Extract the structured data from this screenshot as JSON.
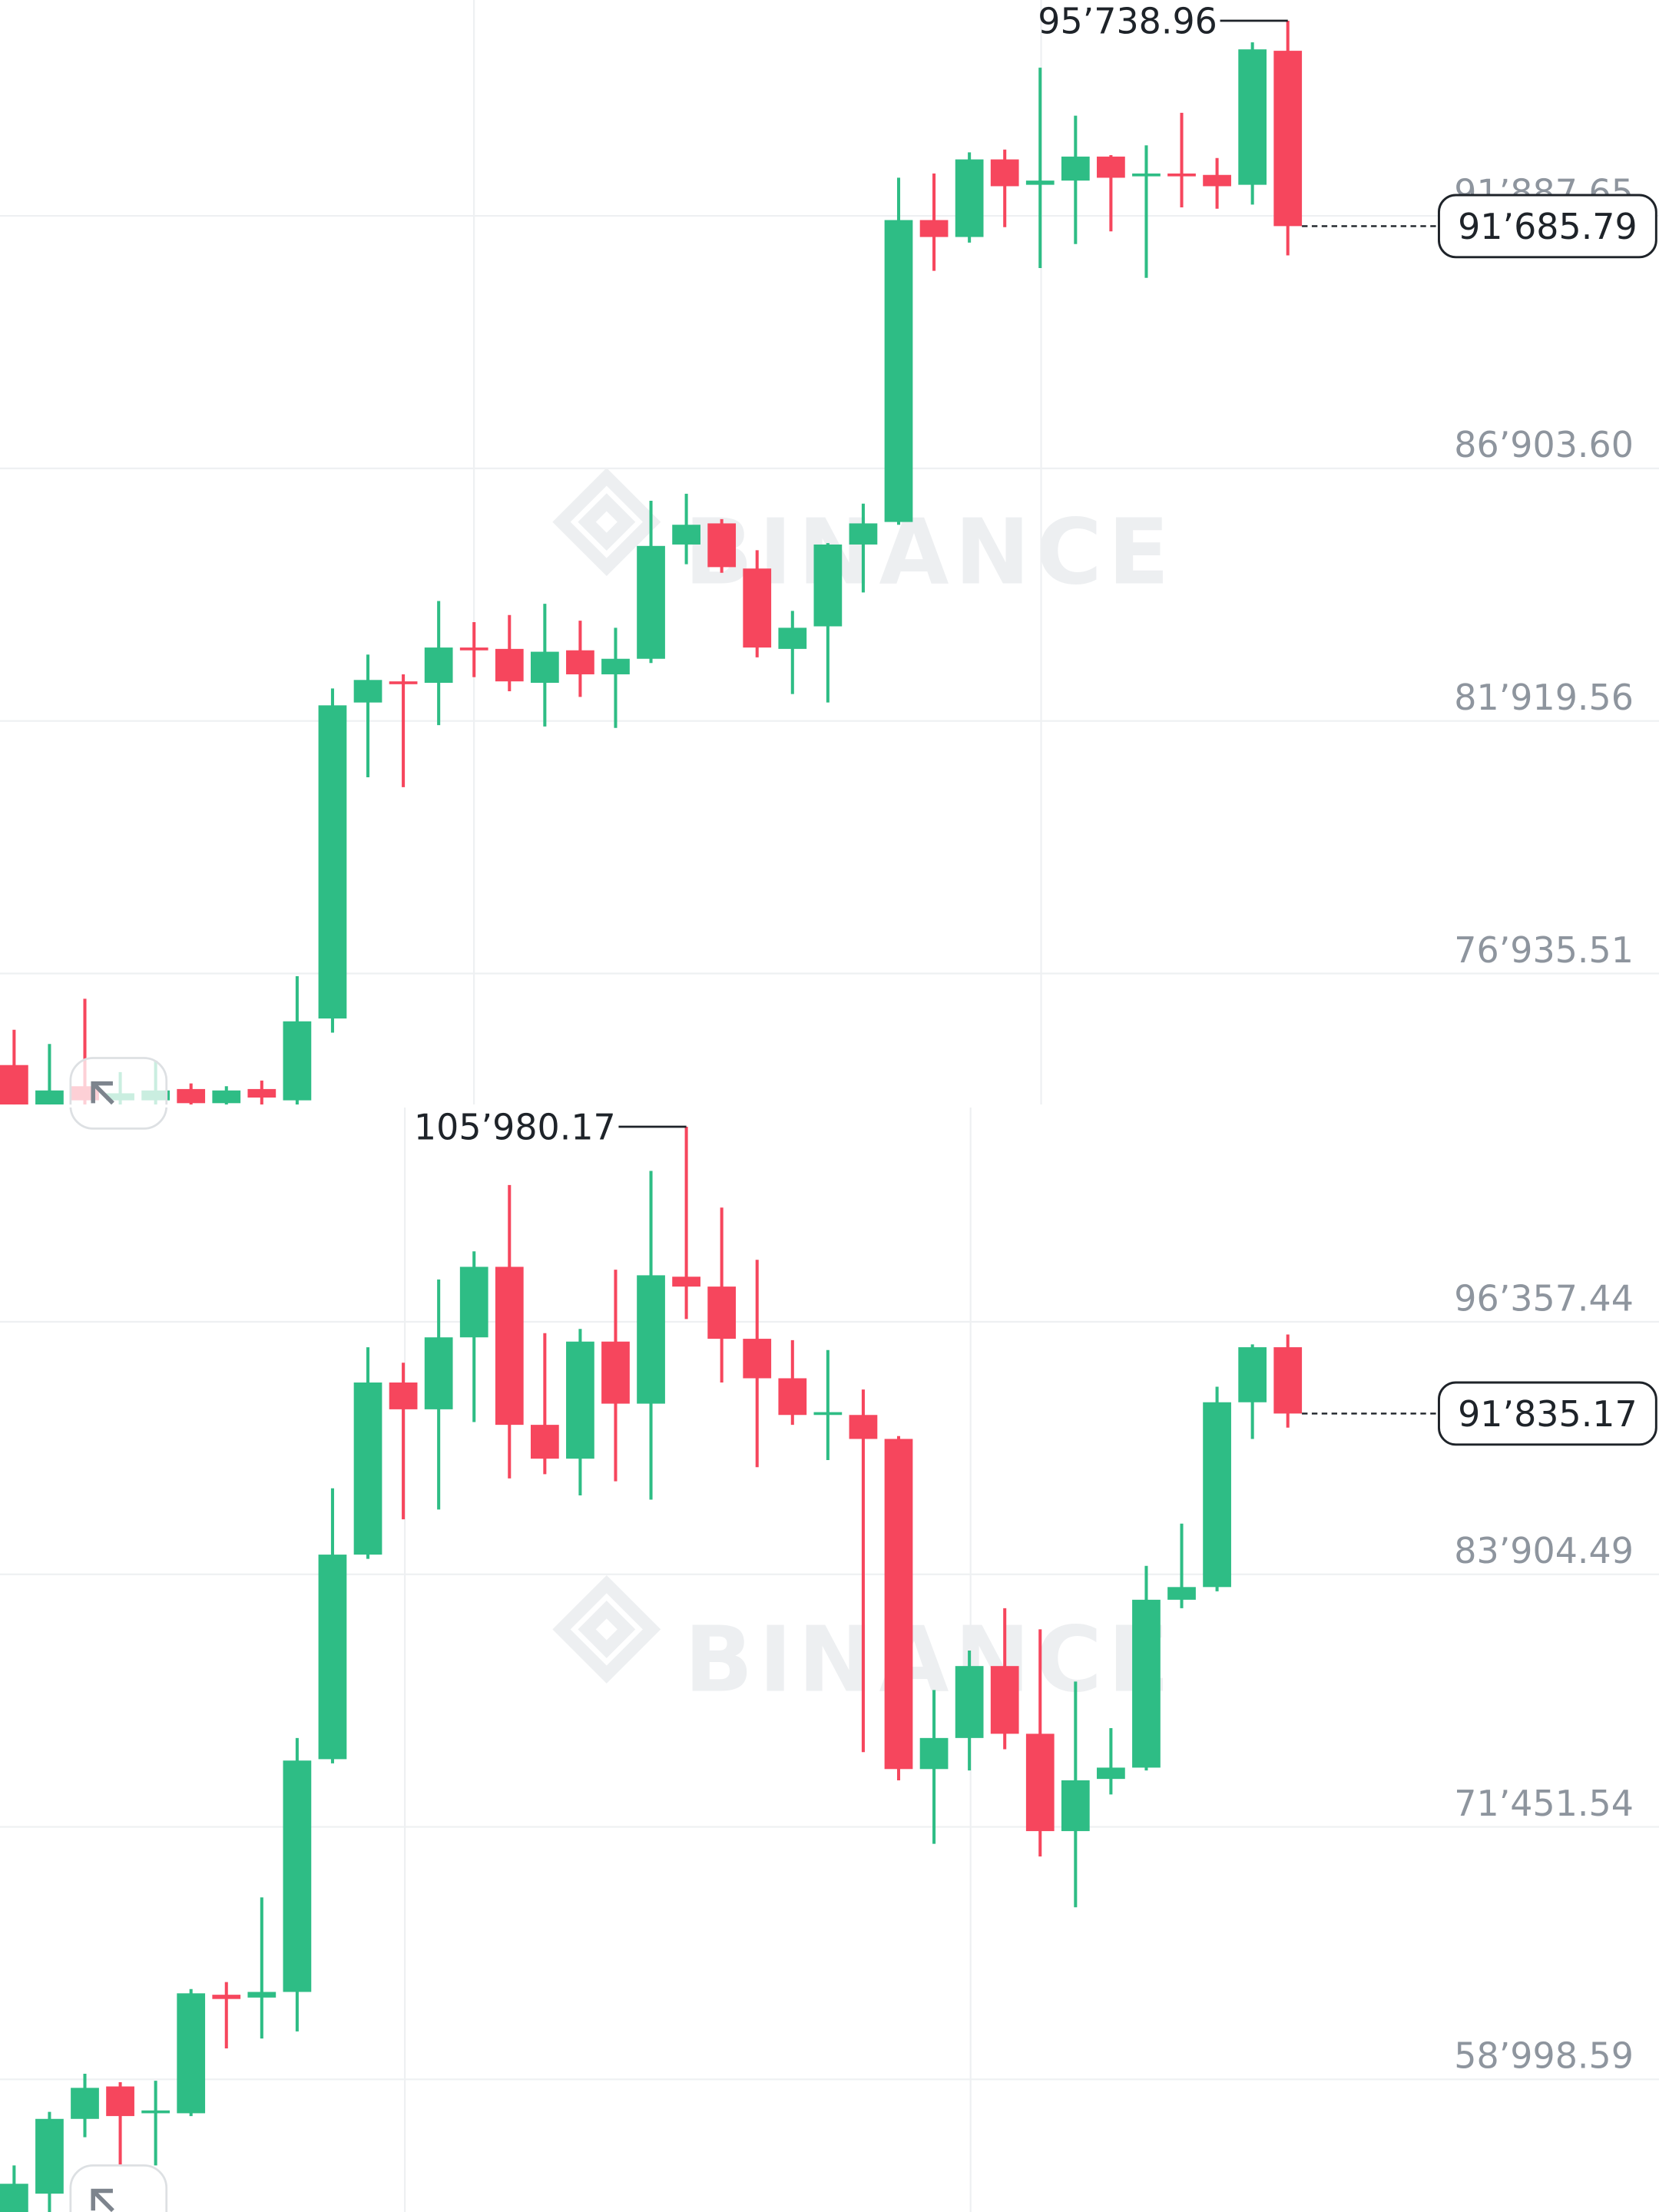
{
  "chart_data": [
    {
      "type": "candlestick",
      "watermark": "BINANCE",
      "up_color": "#2ebd85",
      "down_color": "#f6465d",
      "grid": true,
      "ylim": [
        74349,
        96148
      ],
      "yticks": [
        {
          "value": 91887.65,
          "label": "91’887.65"
        },
        {
          "value": 86903.6,
          "label": "86’903.60"
        },
        {
          "value": 81919.56,
          "label": "81’919.56"
        },
        {
          "value": 76935.51,
          "label": "76’935.51"
        }
      ],
      "open": [
        75129,
        74349,
        74711,
        74433,
        74433,
        74656,
        74377,
        74656,
        74433,
        76048,
        82284,
        82701,
        82673,
        83369,
        83342,
        82673,
        83314,
        82840,
        83147,
        85402,
        85819,
        84928,
        83342,
        83787,
        85402,
        85847,
        91805,
        91471,
        93002,
        92501,
        92584,
        93058,
        92668,
        92724,
        92696,
        92501,
        95146
      ],
      "high": [
        75825,
        75546,
        76437,
        74990,
        75212,
        74767,
        74711,
        74823,
        76883,
        82562,
        83230,
        82840,
        84288,
        83871,
        84010,
        84232,
        83898,
        83759,
        86265,
        86404,
        85903,
        85290,
        84093,
        85430,
        86209,
        92640,
        92724,
        93141,
        93197,
        94812,
        93865,
        93086,
        93280,
        93921,
        93030,
        95313,
        95738.96
      ],
      "low": [
        74154,
        74154,
        74154,
        74154,
        74154,
        74154,
        74154,
        74294,
        74294,
        75769,
        80808,
        80613,
        81838,
        82785,
        82506,
        81810,
        82395,
        81783,
        83063,
        85012,
        84845,
        83175,
        82451,
        82284,
        84455,
        85792,
        90803,
        91360,
        91666,
        90858,
        91332,
        91582,
        90664,
        92056,
        92028,
        92111,
        91109
      ],
      "close": [
        74294,
        74628,
        74433,
        74572,
        74628,
        74377,
        74628,
        74488,
        75992,
        82228,
        82729,
        82646,
        83369,
        83314,
        82701,
        83286,
        82840,
        83147,
        85374,
        85792,
        84956,
        83369,
        83759,
        85402,
        85819,
        91805,
        91471,
        93002,
        92473,
        92584,
        93058,
        92640,
        92724,
        92668,
        92473,
        95174,
        91685.79
      ],
      "high_label": {
        "value": 95738.96,
        "label": "95’738.96"
      },
      "last_price": {
        "value": 91685.79,
        "label": "91’685.79"
      }
    },
    {
      "type": "candlestick",
      "watermark": "BINANCE",
      "up_color": "#2ebd85",
      "down_color": "#f6465d",
      "grid": true,
      "ylim": [
        52458,
        106932
      ],
      "yticks": [
        {
          "value": 96357.44,
          "label": "96’357.44"
        },
        {
          "value": 83904.49,
          "label": "83’904.49"
        },
        {
          "value": 71451.54,
          "label": "71’451.54"
        },
        {
          "value": 58998.59,
          "label": "58’998.59"
        }
      ],
      "open": [
        52458,
        53363,
        57050,
        58650,
        57328,
        57328,
        63172,
        63033,
        63311,
        74790,
        84878,
        93365,
        92044,
        95592,
        99070,
        91278,
        89609,
        95383,
        92322,
        98583,
        98096,
        95522,
        93574,
        91765,
        91765,
        90583,
        74303,
        75834,
        79382,
        76042,
        71242,
        73816,
        74373,
        82652,
        83278,
        92391,
        95105
      ],
      "high": [
        54754,
        57398,
        59276,
        58859,
        58928,
        63450,
        63798,
        67972,
        75834,
        88148,
        95105,
        94339,
        98444,
        99835,
        103105,
        95800,
        96009,
        98931,
        103801,
        105980.17,
        101992,
        99418,
        95452,
        94966,
        93018,
        90722,
        78199,
        80147,
        82234,
        81191,
        78617,
        76321,
        84321,
        86408,
        93157,
        95244,
        95731
      ],
      "low": [
        52458,
        52458,
        56145,
        54754,
        54754,
        57189,
        60528,
        61015,
        61363,
        74581,
        84669,
        86617,
        87104,
        91417,
        88635,
        88843,
        87800,
        88496,
        87591,
        96496,
        93365,
        89191,
        91278,
        89539,
        75138,
        73747,
        70616,
        74234,
        75277,
        69990,
        67485,
        73051,
        74234,
        82234,
        83069,
        90583,
        91139
      ],
      "close": [
        53850,
        57050,
        58580,
        57189,
        57467,
        63242,
        62963,
        63311,
        74721,
        84878,
        93365,
        92044,
        95592,
        99070,
        91278,
        89609,
        95383,
        92322,
        98653,
        98096,
        95522,
        93574,
        91765,
        91904,
        90583,
        74303,
        75834,
        79382,
        76042,
        71242,
        73747,
        74373,
        82652,
        83278,
        92391,
        95105,
        91835.17
      ],
      "high_label": {
        "value": 105980.17,
        "label": "105’980.17"
      },
      "last_price": {
        "value": 91835.17,
        "label": "91’835.17"
      }
    }
  ]
}
